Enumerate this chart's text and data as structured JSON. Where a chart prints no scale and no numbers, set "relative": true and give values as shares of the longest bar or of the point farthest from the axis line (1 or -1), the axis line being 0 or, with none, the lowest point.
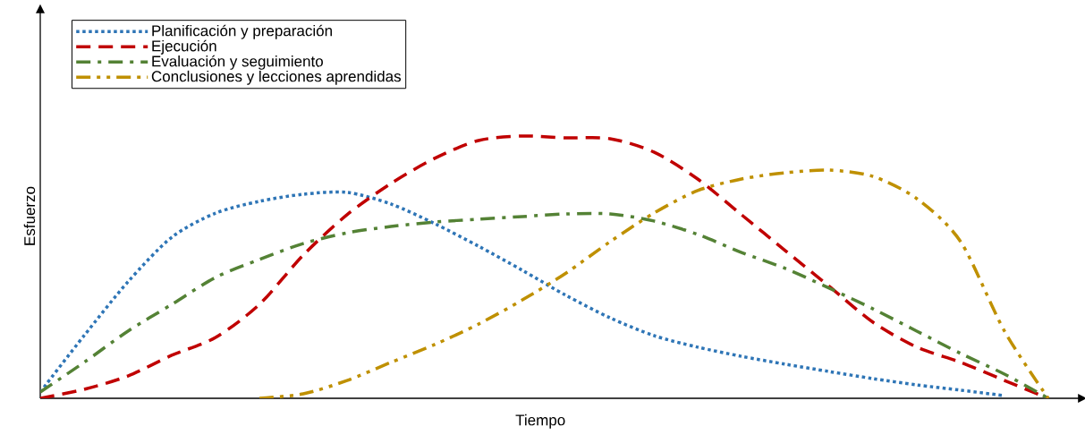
{
  "chart_data": {
    "type": "line",
    "relative": true,
    "xlabel": "Tiempo",
    "ylabel": "Esfuerzo",
    "legend": "top left",
    "marker": "none",
    "categories": [
      null,
      null,
      null,
      null,
      null,
      null,
      null,
      null,
      null,
      null,
      null,
      null,
      null,
      null,
      null,
      null,
      null,
      null,
      null,
      null,
      null,
      null,
      null,
      null
    ],
    "series": [
      {
        "name": "Planificación y preparación",
        "color": "#2e75b6",
        "line_style": "dotted",
        "values": [
          0.024,
          0.239,
          0.444,
          0.614,
          0.706,
          0.751,
          0.778,
          0.785,
          0.741,
          0.666,
          0.58,
          0.488,
          0.392,
          0.307,
          0.239,
          0.195,
          0.16,
          0.13,
          0.102,
          0.075,
          0.051,
          0.031,
          0.01,
          null
        ]
      },
      {
        "name": "Ejecución",
        "color": "#c00000",
        "line_style": "dashed",
        "values": [
          0,
          0.034,
          0.085,
          0.164,
          0.232,
          0.358,
          0.546,
          0.7,
          0.819,
          0.915,
          0.983,
          1,
          0.993,
          0.99,
          0.939,
          0.836,
          0.7,
          0.563,
          0.427,
          0.29,
          0.195,
          0.137,
          0.068,
          0
        ]
      },
      {
        "name": "Evaluación y seguimiento",
        "color": "#548235",
        "line_style": "dashdot",
        "values": [
          0.024,
          0.137,
          0.256,
          0.358,
          0.461,
          0.529,
          0.59,
          0.631,
          0.655,
          0.672,
          0.683,
          0.693,
          0.703,
          0.703,
          0.676,
          0.625,
          0.556,
          0.495,
          0.42,
          0.341,
          0.256,
          0.171,
          0.092,
          0
        ]
      },
      {
        "name": "Conclusiones y lecciones aprendidas",
        "color": "#bf9000",
        "line_style": "dashdotdot",
        "values": [
          null,
          null,
          null,
          null,
          null,
          0,
          0.017,
          0.068,
          0.137,
          0.205,
          0.283,
          0.375,
          0.478,
          0.597,
          0.706,
          0.792,
          0.836,
          0.86,
          0.87,
          0.846,
          0.761,
          0.597,
          0.256,
          0
        ]
      }
    ]
  }
}
